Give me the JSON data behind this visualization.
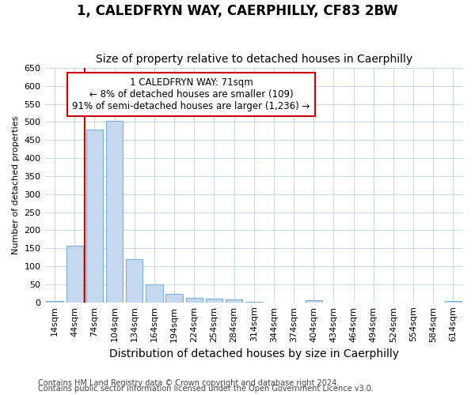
{
  "title": "1, CALEDFRYN WAY, CAERPHILLY, CF83 2BW",
  "subtitle": "Size of property relative to detached houses in Caerphilly",
  "xlabel": "Distribution of detached houses by size in Caerphilly",
  "ylabel": "Number of detached properties",
  "footer1": "Contains HM Land Registry data © Crown copyright and database right 2024.",
  "footer2": "Contains public sector information licensed under the Open Government Licence v3.0.",
  "annotation_title": "1 CALEDFRYN WAY: 71sqm",
  "annotation_line1": "← 8% of detached houses are smaller (109)",
  "annotation_line2": "91% of semi-detached houses are larger (1,236) →",
  "bar_color": "#c5d8f0",
  "bar_edge_color": "#7bafd4",
  "grid_color": "#c8d8ec",
  "background_color": "#ffffff",
  "plot_bg_color": "#ffffff",
  "annotation_box_color": "#ffffff",
  "annotation_border_color": "#cc0000",
  "vline_color": "#cc0000",
  "categories": [
    "14sqm",
    "44sqm",
    "74sqm",
    "104sqm",
    "134sqm",
    "164sqm",
    "194sqm",
    "224sqm",
    "254sqm",
    "284sqm",
    "314sqm",
    "344sqm",
    "374sqm",
    "404sqm",
    "434sqm",
    "464sqm",
    "494sqm",
    "524sqm",
    "554sqm",
    "584sqm",
    "614sqm"
  ],
  "values": [
    3,
    158,
    478,
    503,
    120,
    50,
    24,
    12,
    10,
    7,
    1,
    0,
    0,
    5,
    0,
    0,
    0,
    0,
    0,
    0,
    3
  ],
  "ylim": [
    0,
    650
  ],
  "yticks": [
    0,
    50,
    100,
    150,
    200,
    250,
    300,
    350,
    400,
    450,
    500,
    550,
    600,
    650
  ],
  "vline_x": 1.5,
  "title_fontsize": 12,
  "subtitle_fontsize": 10,
  "xlabel_fontsize": 10,
  "ylabel_fontsize": 8,
  "tick_fontsize": 8,
  "footer_fontsize": 7
}
